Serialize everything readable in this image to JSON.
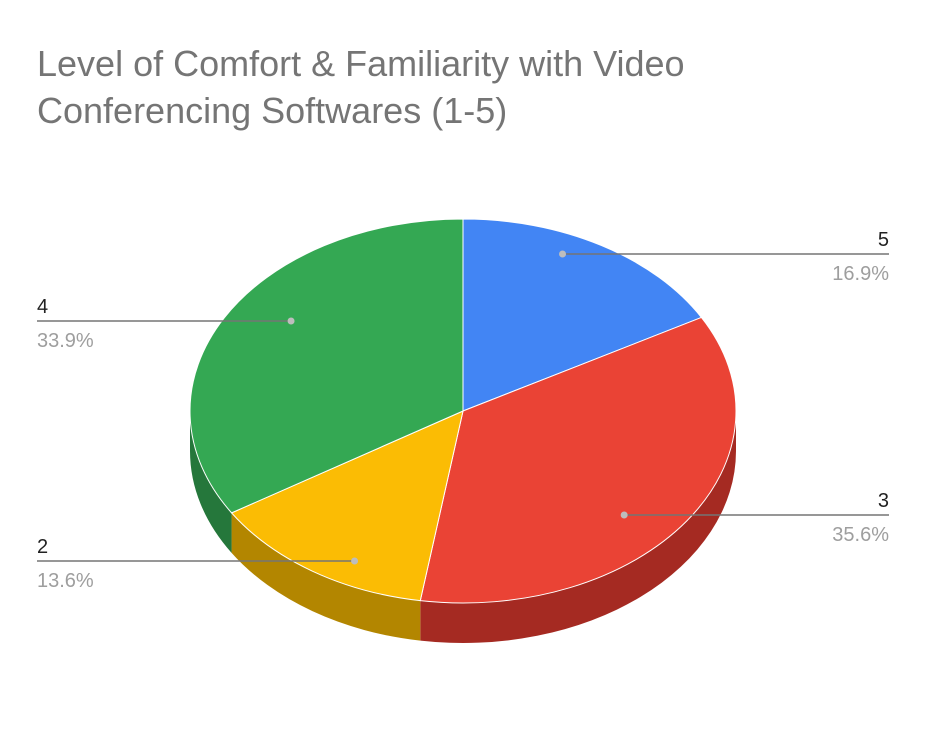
{
  "chart_data": {
    "type": "pie",
    "title_lines": [
      "Level of Comfort & Familiarity with Video",
      "Conferencing Softwares (1-5)"
    ],
    "slices": [
      {
        "label": "5",
        "percent_label": "16.9%",
        "value": 16.9,
        "color": "#4285f4",
        "side_color": "#3367c8"
      },
      {
        "label": "3",
        "percent_label": "35.6%",
        "value": 35.6,
        "color": "#ea4335",
        "side_color": "#a52a22"
      },
      {
        "label": "2",
        "percent_label": "13.6%",
        "value": 13.6,
        "color": "#fbbc04",
        "side_color": "#b38600"
      },
      {
        "label": "4",
        "percent_label": "33.9%",
        "value": 33.9,
        "color": "#34a853",
        "side_color": "#25773b"
      }
    ],
    "start": "top",
    "direction": "clockwise",
    "style": "3d"
  }
}
